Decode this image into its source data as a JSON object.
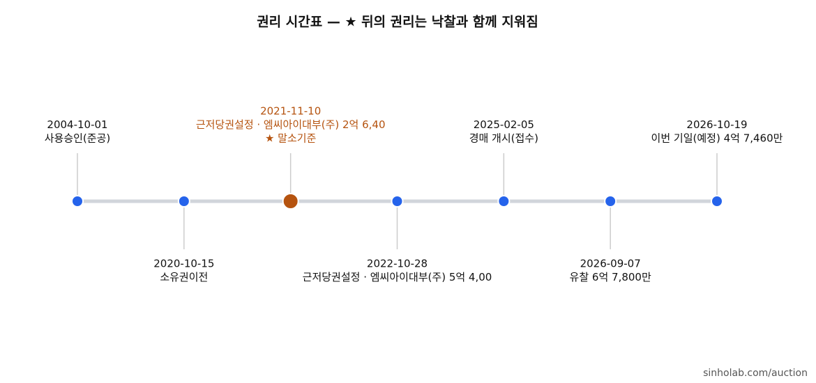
{
  "title": "권리 시간표 — ★ 뒤의 권리는 낙찰과 함께 지워짐",
  "events": [
    {
      "date": "2004-10-01",
      "label": "사용승인(준공)"
    },
    {
      "date": "2020-10-15",
      "label": "소유권이전"
    },
    {
      "date": "2021-11-10",
      "label": "근저당권설정 · 엠씨아이대부(주) 2억 6,40",
      "note": "★ 말소기준"
    },
    {
      "date": "2022-10-28",
      "label": "근저당권설정 · 엠씨아이대부(주) 5억 4,00"
    },
    {
      "date": "2025-02-05",
      "label": "경매 개시(접수)"
    },
    {
      "date": "2026-09-07",
      "label": "유찰 6억 7,800만"
    },
    {
      "date": "2026-10-19",
      "label": "이번 기일(예정) 4억 7,460만"
    }
  ],
  "footer": "sinholab.com/auction"
}
